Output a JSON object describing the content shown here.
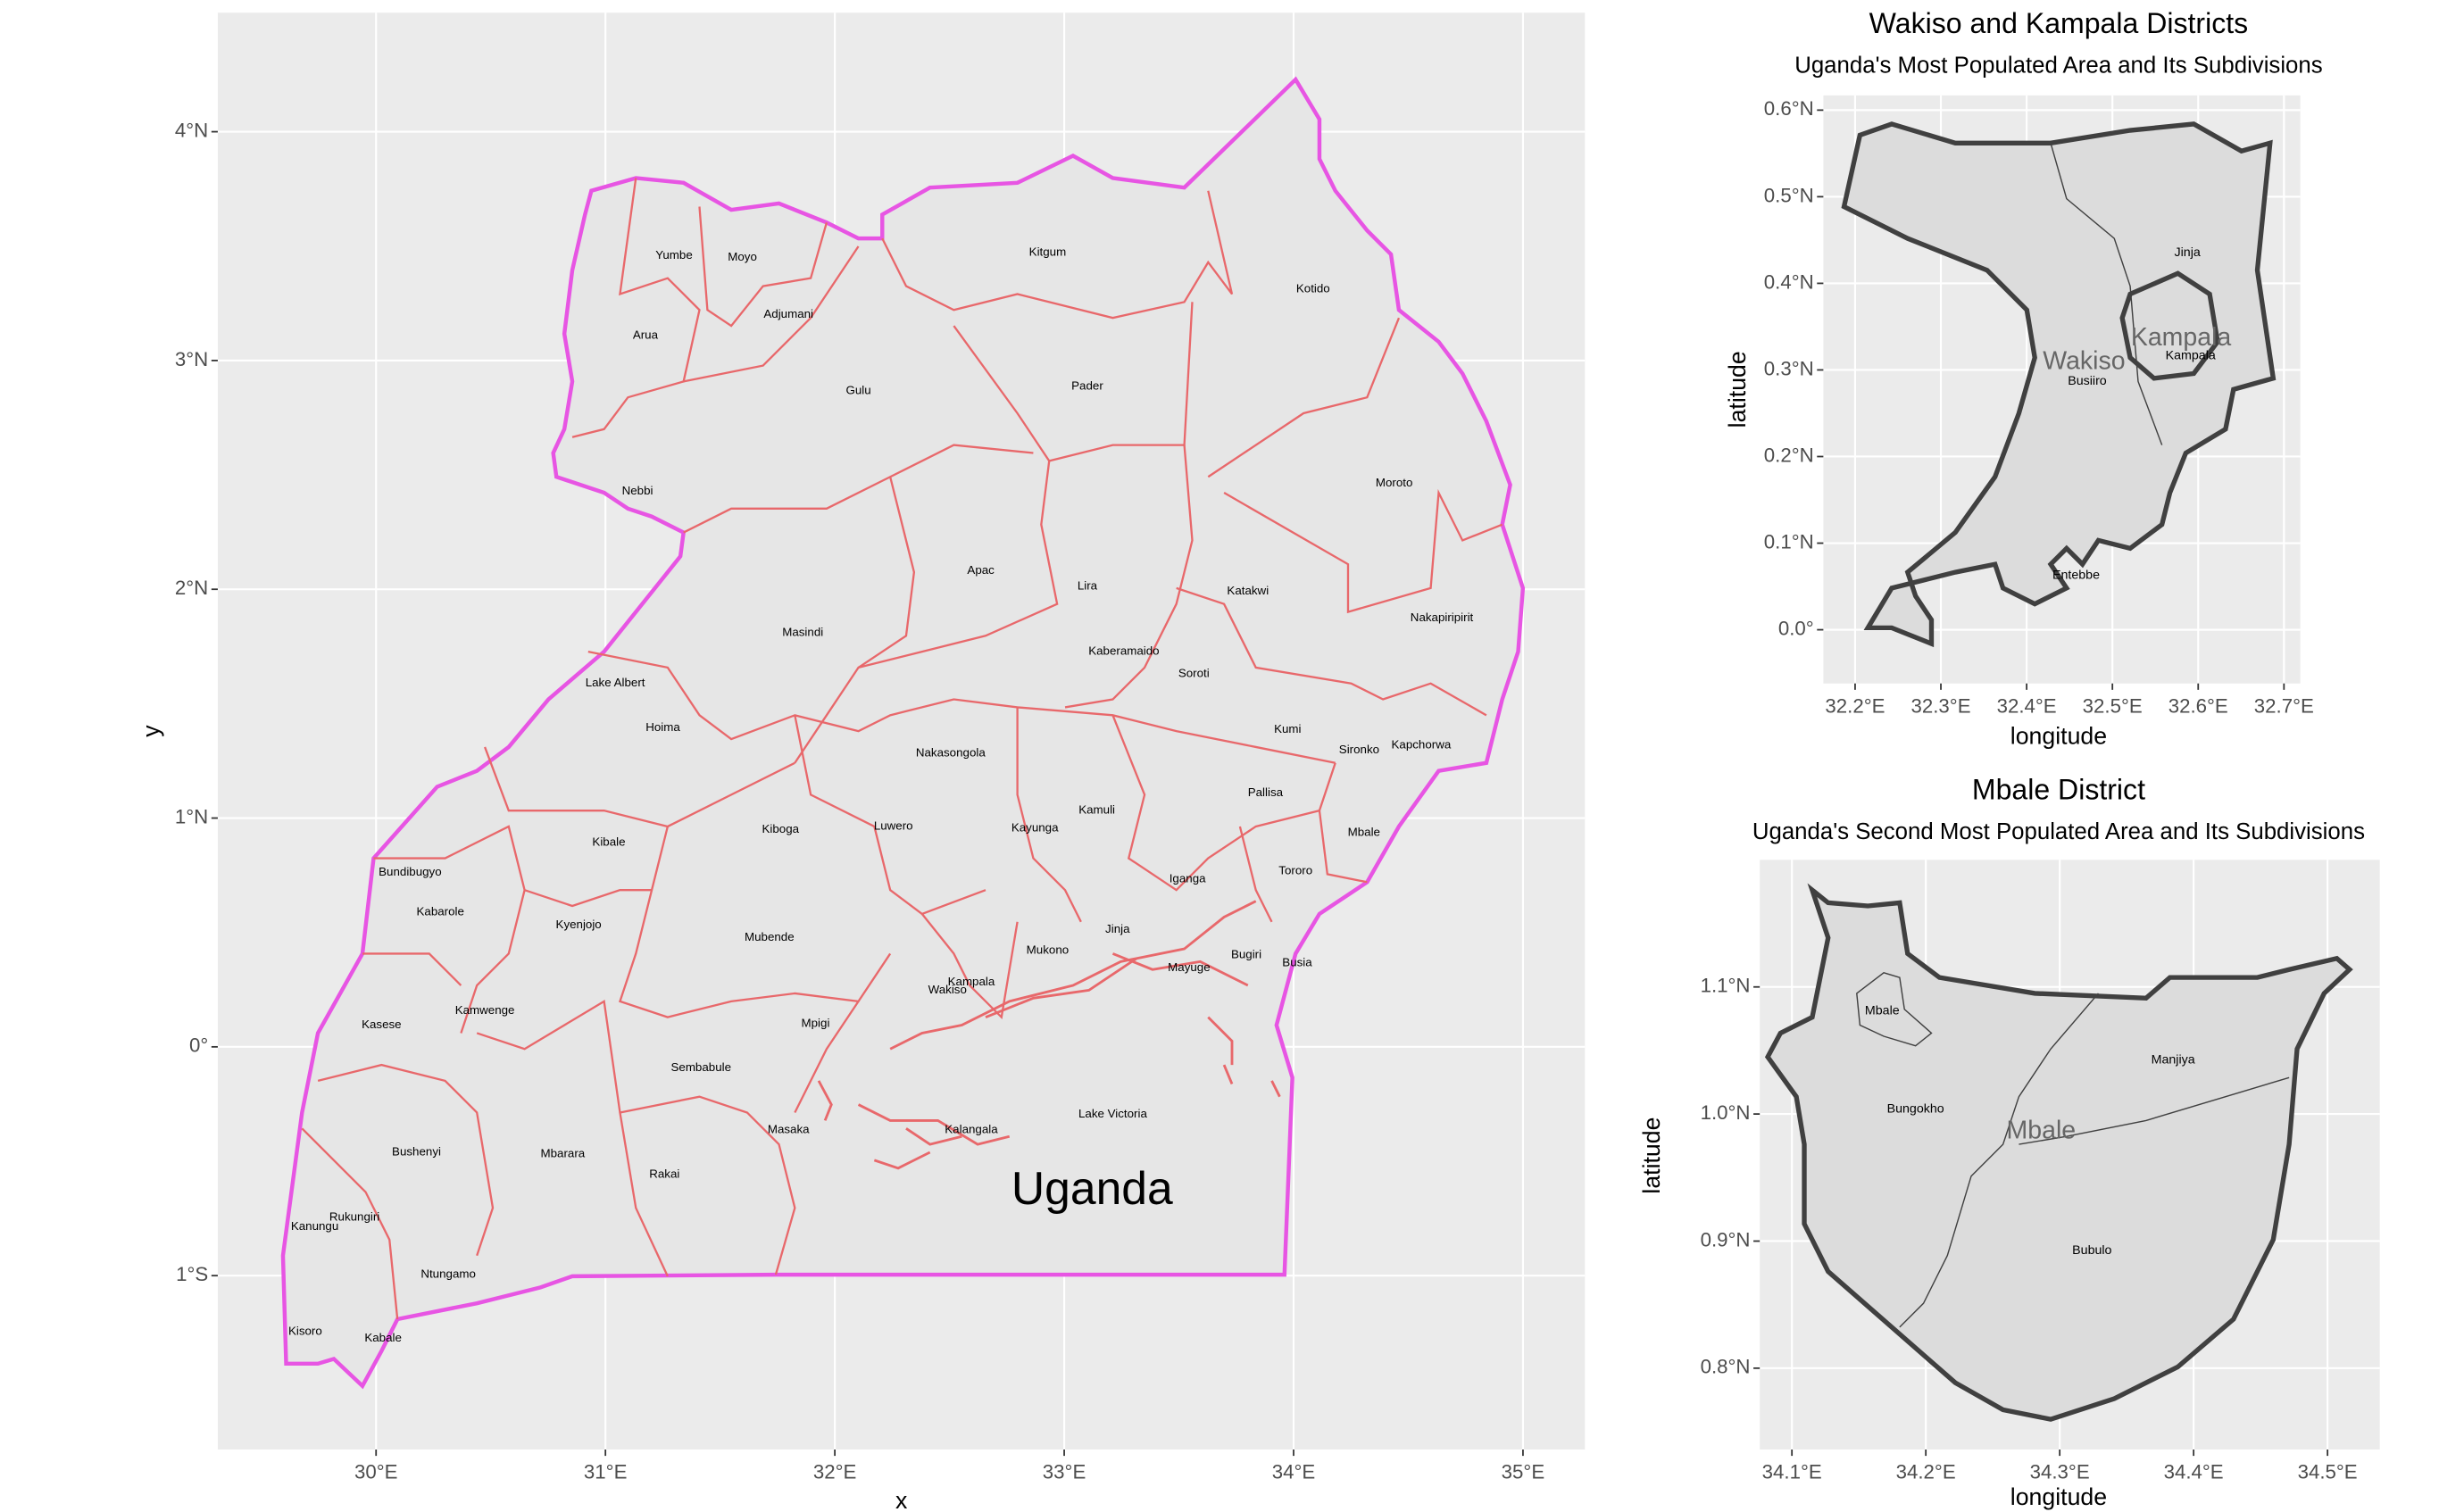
{
  "main_map": {
    "x_label": "x",
    "y_label": "y",
    "annotation": "Uganda",
    "xlim": [
      29.31,
      35.27
    ],
    "ylim": [
      -1.76,
      4.52
    ],
    "xticks": [
      {
        "value": 30,
        "label": "30°E"
      },
      {
        "value": 31,
        "label": "31°E"
      },
      {
        "value": 32,
        "label": "32°E"
      },
      {
        "value": 33,
        "label": "33°E"
      },
      {
        "value": 34,
        "label": "34°E"
      },
      {
        "value": 35,
        "label": "35°E"
      }
    ],
    "yticks": [
      {
        "value": -1,
        "label": "1°S"
      },
      {
        "value": 0,
        "label": "0°"
      },
      {
        "value": 1,
        "label": "1°N"
      },
      {
        "value": 2,
        "label": "2°N"
      },
      {
        "value": 3,
        "label": "3°N"
      },
      {
        "value": 4,
        "label": "4°N"
      }
    ],
    "districts": [
      "Yumbe",
      "Moyo",
      "Kitgum",
      "Kotido",
      "Adjumani",
      "Arua",
      "Gulu",
      "Pader",
      "Nebbi",
      "Moroto",
      "Apac",
      "Lira",
      "Katakwi",
      "Nakapiripirit",
      "Masindi",
      "Kaberamaido",
      "Soroti",
      "Lake Albert",
      "Hoima",
      "Kumi",
      "Sironko",
      "Kapchorwa",
      "Nakasongola",
      "Pallisa",
      "Kamuli",
      "Kibale",
      "Kiboga",
      "Luwero",
      "Kayunga",
      "Mbale",
      "Bundibugyo",
      "Iganga",
      "Tororo",
      "Kabarole",
      "Kyenjojo",
      "Jinja",
      "Mubende",
      "Mukono",
      "Bugiri",
      "Busia",
      "Mayuge",
      "Kampala",
      "Wakiso",
      "Kamwenge",
      "Mpigi",
      "Kasese",
      "Sembabule",
      "Lake Victoria",
      "Masaka",
      "Kalangala",
      "Bushenyi",
      "Mbarara",
      "Rakai",
      "Rukungiri",
      "Kanungu",
      "Ntungamo",
      "Kisoro",
      "Kabale"
    ]
  },
  "inset_wakiso_kampala": {
    "title": "Wakiso and Kampala Districts",
    "subtitle": "Uganda's Most Populated Area and Its Subdivisions",
    "x_label": "longitude",
    "y_label": "latitude",
    "xlim": [
      32.163,
      32.719
    ],
    "ylim": [
      -0.062,
      0.617
    ],
    "xticks": [
      {
        "value": 32.2,
        "label": "32.2°E"
      },
      {
        "value": 32.3,
        "label": "32.3°E"
      },
      {
        "value": 32.4,
        "label": "32.4°E"
      },
      {
        "value": 32.5,
        "label": "32.5°E"
      },
      {
        "value": 32.6,
        "label": "32.6°E"
      },
      {
        "value": 32.7,
        "label": "32.7°E"
      }
    ],
    "yticks": [
      {
        "value": 0,
        "label": "0.0°"
      },
      {
        "value": 0.1,
        "label": "0.1°N"
      },
      {
        "value": 0.2,
        "label": "0.2°N"
      },
      {
        "value": 0.3,
        "label": "0.3°N"
      },
      {
        "value": 0.4,
        "label": "0.4°N"
      },
      {
        "value": 0.5,
        "label": "0.5°N"
      },
      {
        "value": 0.6,
        "label": "0.6°N"
      }
    ],
    "districts": [
      "Wakiso",
      "Kampala"
    ],
    "subdivisions": [
      "Jinja",
      "Kampala",
      "Busiiro",
      "Entebbe"
    ]
  },
  "inset_mbale": {
    "title": "Mbale District",
    "subtitle": "Uganda's Second Most Populated Area and Its Subdivisions",
    "x_label": "longitude",
    "y_label": "latitude",
    "xlim": [
      34.076,
      34.539
    ],
    "ylim": [
      0.736,
      1.2
    ],
    "xticks": [
      {
        "value": 34.1,
        "label": "34.1°E"
      },
      {
        "value": 34.2,
        "label": "34.2°E"
      },
      {
        "value": 34.3,
        "label": "34.3°E"
      },
      {
        "value": 34.4,
        "label": "34.4°E"
      },
      {
        "value": 34.5,
        "label": "34.5°E"
      }
    ],
    "yticks": [
      {
        "value": 0.8,
        "label": "0.8°N"
      },
      {
        "value": 0.9,
        "label": "0.9°N"
      },
      {
        "value": 1.0,
        "label": "1.0°N"
      },
      {
        "value": 1.1,
        "label": "1.1°N"
      }
    ],
    "districts": [
      "Mbale"
    ],
    "subdivisions": [
      "Mbale",
      "Manjiya",
      "Bungokho",
      "Bubulo"
    ]
  }
}
